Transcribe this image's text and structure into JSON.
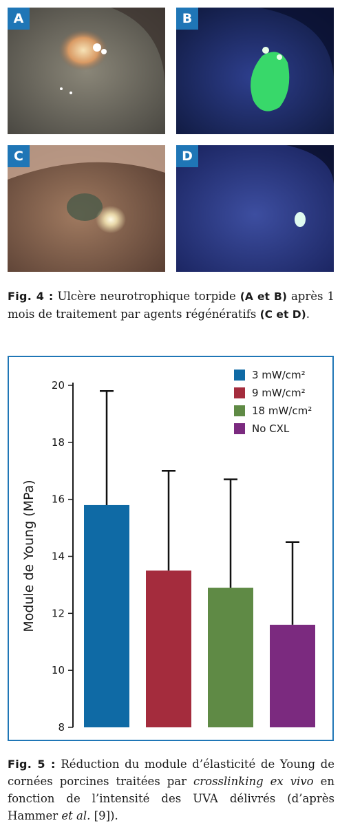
{
  "figure4": {
    "panels": [
      {
        "label": "A"
      },
      {
        "label": "B"
      },
      {
        "label": "C"
      },
      {
        "label": "D"
      }
    ],
    "caption": {
      "fig_label": "Fig. 4 :",
      "part1": " Ulcère neurotrophique torpide ",
      "bold1": "(A et B)",
      "part2": " après 1 mois de traitement par agents régénératifs ",
      "bold2": "(C et D)",
      "part3": "."
    }
  },
  "figure5": {
    "caption": {
      "fig_label": "Fig. 5 :",
      "part1": " Réduction du module d’élasticité de Young de cornées porcines traitées par ",
      "italic1": "crosslinking ex vivo",
      "part2": " en fonction de l’intensité des UVA délivrés (d’après Hammer ",
      "italic2": "et al.",
      "part3": " [9])."
    }
  },
  "chart_data": {
    "type": "bar",
    "title": "",
    "xlabel": "",
    "ylabel": "Module de Young (MPa)",
    "ylim": [
      8,
      20
    ],
    "yticks": [
      8,
      10,
      12,
      14,
      16,
      18,
      20
    ],
    "grid": false,
    "legend_position": "top-right",
    "series": [
      {
        "name": "3 mW/cm²",
        "value": 15.8,
        "error_upper": 19.8,
        "color": "#0f6aa5"
      },
      {
        "name": "9 mW/cm²",
        "value": 13.5,
        "error_upper": 17.0,
        "color": "#a42c3d"
      },
      {
        "name": "18 mW/cm²",
        "value": 12.9,
        "error_upper": 16.7,
        "color": "#5f8a45"
      },
      {
        "name": "No CXL",
        "value": 11.6,
        "error_upper": 14.5,
        "color": "#7b2a7f"
      }
    ]
  }
}
